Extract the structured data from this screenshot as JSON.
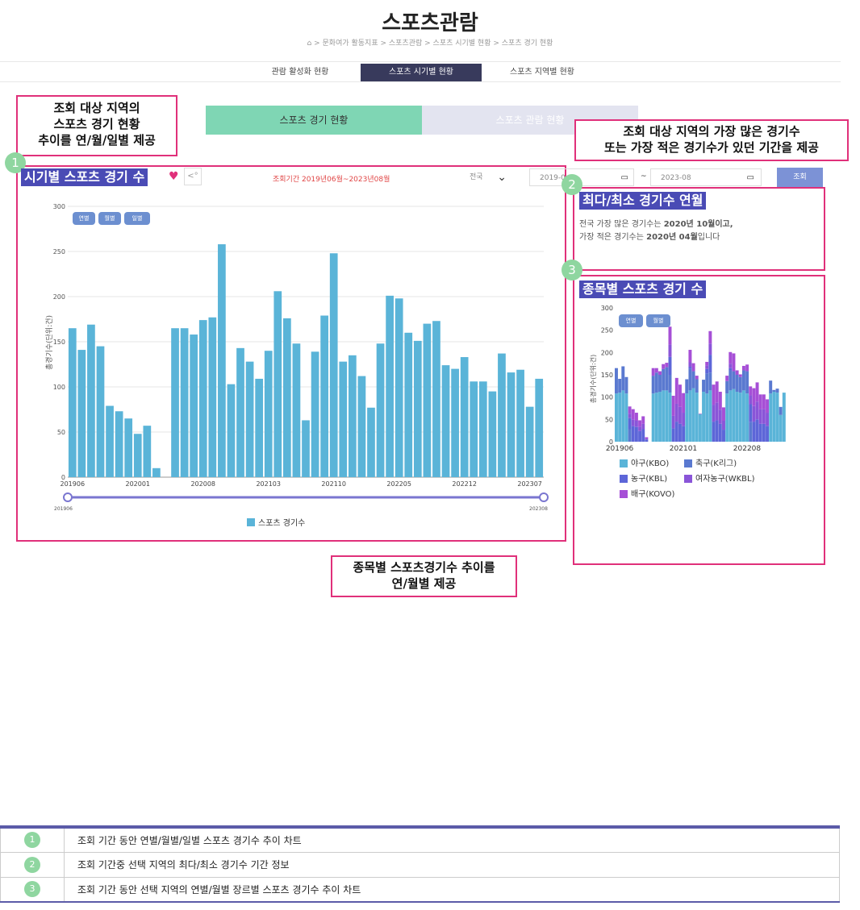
{
  "header": {
    "title": "스포츠관람",
    "breadcrumb": "⌂ > 문화여가 활동지표 > 스포츠관람 > 스포츠 시기별 현황 > 스포츠 경기 현황"
  },
  "tabs": [
    "관람 활성화 현황",
    "스포츠 시기별 현황",
    "스포츠 지역별 현황"
  ],
  "subtabs": [
    "스포츠 경기 현황",
    "스포츠 관람 현황"
  ],
  "callouts": {
    "c1": [
      "조회 대상 지역의",
      "스포츠 경기 현황",
      "추이를 연/월/일별 제공"
    ],
    "c2": [
      "조회 대상 지역의 가장 많은 경기수",
      "또는 가장 적은 경기수가 있던 기간을 제공"
    ],
    "c3": [
      "종목별 스포츠경기수 추이를",
      "연/월별 제공"
    ]
  },
  "panel1": {
    "number": "1",
    "title": "시기별 스포츠 경기 수",
    "period": "조회기간 2019년06월~2023년08월",
    "region": "전국",
    "date_from": "2019-0",
    "date_sep": "~",
    "date_to": "2023-08",
    "search_button": "조회",
    "buttons": [
      "연별",
      "월별",
      "일별"
    ],
    "ylabel": "총경기수(단위:건)",
    "legend": "스포츠 경기수",
    "range_start": "201906",
    "range_end": "202308"
  },
  "panel2": {
    "number": "2",
    "title": "최다/최소 경기수 연월",
    "line1_pre": "전국 가장 많은 경기수는 ",
    "line1_bold": "2020년 10월이고,",
    "line2_pre": "가장 적은 경기수는 ",
    "line2_bold": "2020년 04월",
    "line2_post": "입니다"
  },
  "panel3": {
    "number": "3",
    "title": "종목별 스포츠 경기 수",
    "buttons": [
      "연별",
      "월별"
    ],
    "ylabel": "총경기수(단위:건)",
    "legend": [
      {
        "name": "야구(KBO)",
        "color": "#5ab4d8"
      },
      {
        "name": "축구(K리그)",
        "color": "#5a79d0"
      },
      {
        "name": "농구(KBL)",
        "color": "#5d66d8"
      },
      {
        "name": "여자농구(WKBL)",
        "color": "#8a55d8"
      },
      {
        "name": "배구(KOVO)",
        "color": "#a64fd6"
      }
    ]
  },
  "desc_rows": [
    {
      "num": "1",
      "text": "조회 기간 동안 연별/월별/일별 스포츠 경기수 추이 차트"
    },
    {
      "num": "2",
      "text": "조회 기간중 선택 지역의 최다/최소 경기수 기간 정보"
    },
    {
      "num": "3",
      "text": "조회 기간 동안 선택 지역의 연별/월별 장르별 스포츠 경기수 추이 차트"
    }
  ],
  "chart_data": [
    {
      "type": "bar",
      "series": [
        {
          "name": "스포츠 경기수",
          "values": [
            165,
            141,
            169,
            145,
            79,
            73,
            65,
            48,
            57,
            10,
            0,
            165,
            165,
            158,
            174,
            177,
            258,
            103,
            143,
            128,
            109,
            140,
            206,
            176,
            148,
            63,
            139,
            179,
            248,
            128,
            135,
            112,
            77,
            148,
            201,
            198,
            160,
            151,
            170,
            173,
            124,
            120,
            133,
            106,
            106,
            95,
            137,
            116,
            119,
            78,
            109
          ]
        }
      ],
      "x": [
        "201906",
        "201907",
        "201908",
        "201909",
        "201910",
        "201911",
        "201912",
        "202001",
        "202002",
        "202003",
        "202004",
        "202005",
        "202006",
        "202007",
        "202008",
        "202009",
        "202010",
        "202011",
        "202012",
        "202101",
        "202102",
        "202103",
        "202104",
        "202105",
        "202106",
        "202107",
        "202108",
        "202109",
        "202110",
        "202111",
        "202112",
        "202201",
        "202202",
        "202203",
        "202204",
        "202205",
        "202206",
        "202207",
        "202208",
        "202209",
        "202210",
        "202211",
        "202212",
        "202301",
        "202302",
        "202303",
        "202304",
        "202305",
        "202306",
        "202307",
        "202308"
      ],
      "x_tick_labels": [
        "201906",
        "202001",
        "202008",
        "202103",
        "202110",
        "202205",
        "202212",
        "202307"
      ],
      "ylim": [
        0,
        300
      ],
      "yticks": [
        0,
        50,
        100,
        150,
        200,
        250,
        300
      ],
      "ylabel": "총경기수(단위:건)",
      "grid": true,
      "color": "#5ab4d8"
    },
    {
      "type": "bar",
      "stacked": true,
      "x_tick_labels": [
        "201906",
        "202101",
        "202208"
      ],
      "ylim": [
        0,
        300
      ],
      "yticks": [
        0,
        50,
        100,
        150,
        200,
        250,
        300
      ],
      "ylabel": "총경기수(단위:건)",
      "series": [
        {
          "name": "야구(KBO)",
          "values": [
            108,
            110,
            115,
            108,
            0,
            0,
            0,
            0,
            0,
            0,
            0,
            108,
            110,
            112,
            115,
            115,
            110,
            0,
            0,
            0,
            0,
            108,
            115,
            120,
            110,
            62,
            112,
            108,
            115,
            0,
            0,
            0,
            0,
            108,
            115,
            118,
            112,
            110,
            115,
            108,
            0,
            0,
            0,
            0,
            0,
            0,
            108,
            112,
            110,
            60,
            110
          ]
        },
        {
          "name": "축구(K리그)",
          "values": [
            57,
            31,
            54,
            37,
            28,
            0,
            0,
            0,
            0,
            0,
            0,
            40,
            45,
            38,
            48,
            52,
            40,
            0,
            0,
            0,
            0,
            32,
            48,
            38,
            30,
            0,
            27,
            45,
            40,
            0,
            0,
            0,
            0,
            28,
            45,
            40,
            38,
            35,
            45,
            50,
            44,
            0,
            0,
            0,
            0,
            0,
            29,
            4,
            9,
            18,
            0
          ]
        },
        {
          "name": "농구(KBL)",
          "values": [
            0,
            0,
            0,
            0,
            25,
            35,
            33,
            24,
            28,
            5,
            0,
            0,
            0,
            0,
            0,
            0,
            40,
            30,
            45,
            40,
            35,
            0,
            5,
            0,
            0,
            0,
            0,
            10,
            40,
            45,
            48,
            40,
            27,
            0,
            5,
            0,
            0,
            0,
            0,
            0,
            40,
            45,
            50,
            40,
            40,
            35,
            0,
            0,
            0,
            0,
            0
          ]
        },
        {
          "name": "여자농구(WKBL)",
          "values": [
            0,
            0,
            0,
            0,
            10,
            15,
            14,
            10,
            12,
            2,
            0,
            0,
            0,
            0,
            0,
            0,
            28,
            28,
            40,
            38,
            30,
            0,
            10,
            0,
            0,
            0,
            0,
            8,
            25,
            38,
            40,
            32,
            20,
            0,
            10,
            0,
            0,
            0,
            0,
            0,
            20,
            35,
            40,
            33,
            33,
            30,
            0,
            0,
            0,
            0,
            0
          ]
        },
        {
          "name": "배구(KOVO)",
          "values": [
            0,
            0,
            0,
            0,
            16,
            23,
            18,
            14,
            17,
            3,
            0,
            17,
            10,
            8,
            11,
            10,
            40,
            45,
            58,
            50,
            44,
            0,
            28,
            18,
            8,
            1,
            0,
            8,
            28,
            45,
            47,
            40,
            30,
            12,
            26,
            40,
            10,
            6,
            10,
            15,
            20,
            40,
            43,
            33,
            33,
            30,
            0,
            0,
            0,
            0,
            0
          ]
        }
      ]
    }
  ]
}
